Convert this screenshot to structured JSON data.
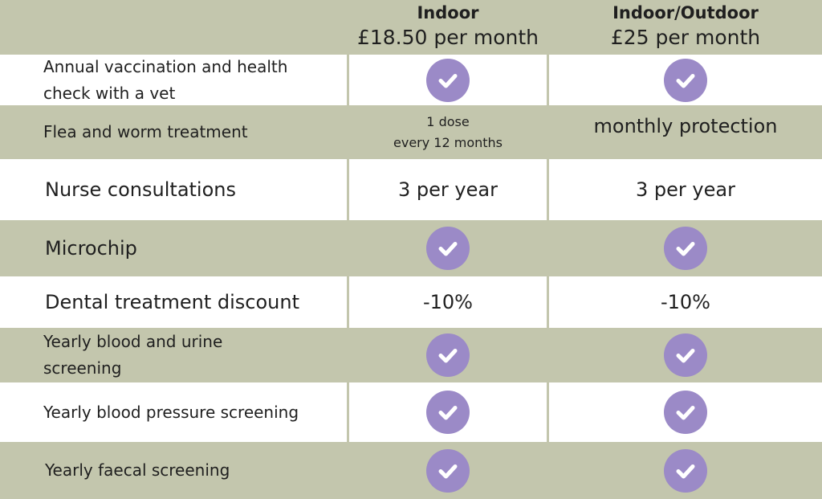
{
  "header": {
    "plans": [
      {
        "name": "Indoor",
        "price": "£18.50 per month"
      },
      {
        "name": "Indoor/Outdoor",
        "price": "£25 per month"
      }
    ]
  },
  "rows": [
    {
      "feature": "Annual vaccination and health check with a vet",
      "indoor": "check",
      "outdoor": "check"
    },
    {
      "feature": "Flea and worm treatment",
      "indoor_line1": "1 dose",
      "indoor_line2": "every 12 months",
      "outdoor": "monthly protection"
    },
    {
      "feature": "Nurse consultations",
      "indoor": "3 per year",
      "outdoor": "3 per year"
    },
    {
      "feature": "Microchip",
      "indoor": "check",
      "outdoor": "check"
    },
    {
      "feature": "Dental treatment discount",
      "indoor": "-10%",
      "outdoor": "-10%"
    },
    {
      "feature": "Yearly blood and urine screening",
      "indoor": "check",
      "outdoor": "check"
    },
    {
      "feature": "Yearly blood pressure screening",
      "indoor": "check",
      "outdoor": "check"
    },
    {
      "feature": "Yearly faecal screening",
      "indoor": "check",
      "outdoor": "check"
    }
  ],
  "colors": {
    "background": "#c3c6ad",
    "row_white": "#ffffff",
    "check": "#9b8ac7"
  },
  "icons": {
    "included": "check-circle-icon"
  }
}
